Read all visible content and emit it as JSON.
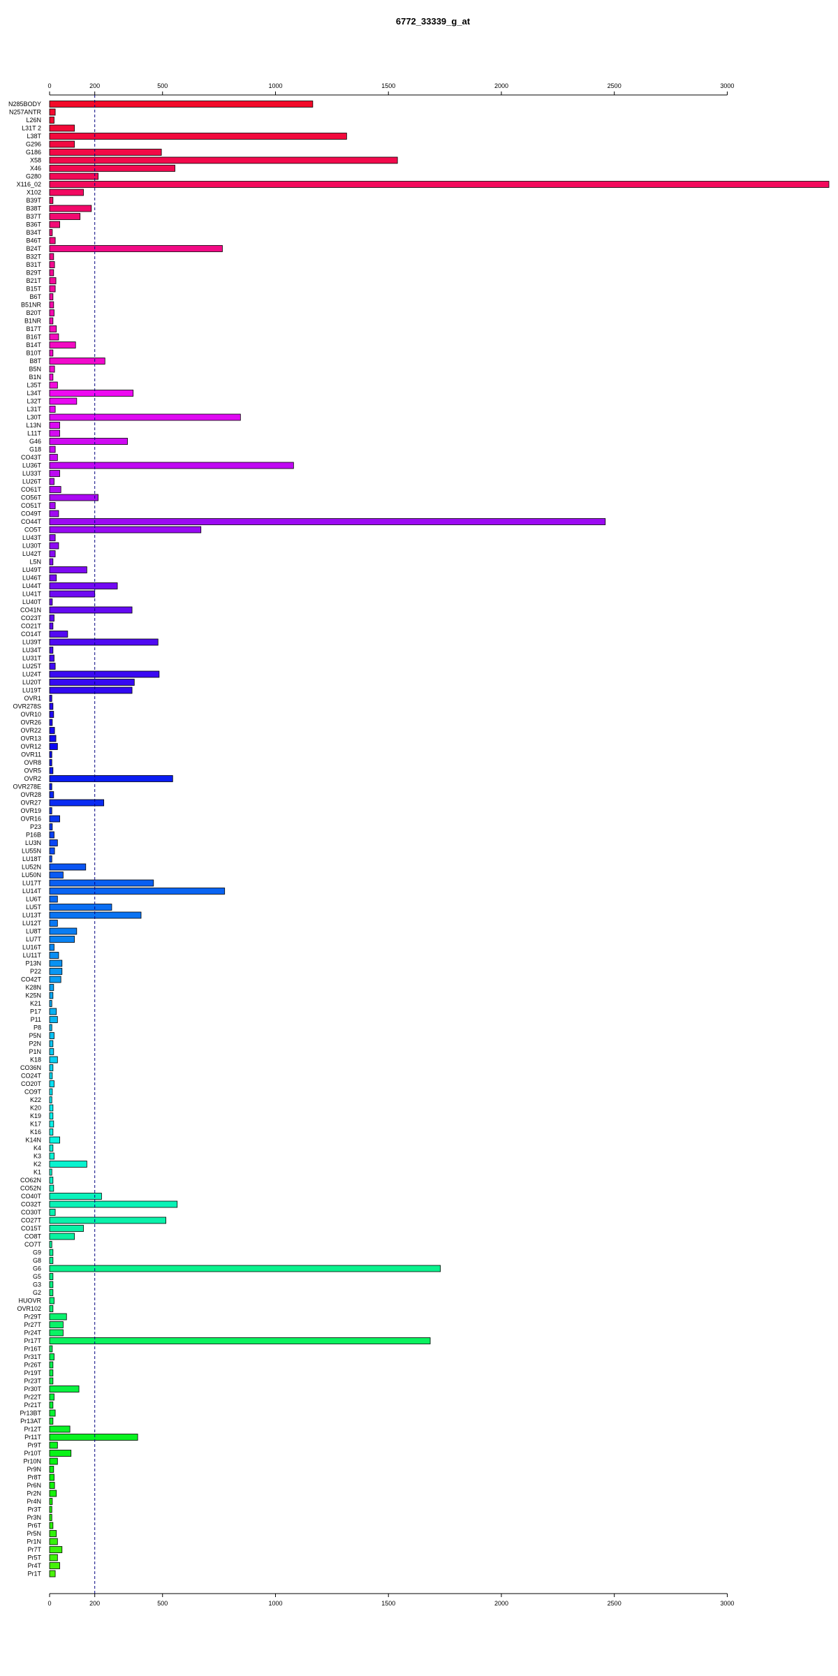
{
  "chart_data": {
    "type": "bar",
    "orientation": "horizontal",
    "title": "6772_33339_g_at",
    "xlabel": "",
    "ylabel": "",
    "xlim": [
      0,
      3450
    ],
    "xticks": [
      0,
      200,
      500,
      1000,
      1500,
      2000,
      2500,
      3000
    ],
    "reference_line": 200,
    "grid": false,
    "categories": [
      "N285BODY",
      "N257ANTR",
      "L26N",
      "L31T 2",
      "L38T",
      "G296",
      "G186",
      "X58",
      "X46",
      "G280",
      "X116_02",
      "X102",
      "B39T",
      "B38T",
      "B37T",
      "B36T",
      "B34T",
      "B46T",
      "B24T",
      "B32T",
      "B31T",
      "B29T",
      "B21T",
      "B15T",
      "B6T",
      "B51NR",
      "B20T",
      "B1NR",
      "B17T",
      "B16T",
      "B14T",
      "B10T",
      "B8T",
      "B5N",
      "B1N",
      "L35T",
      "L34T",
      "L32T",
      "L31T",
      "L30T",
      "L13N",
      "L11T",
      "G46",
      "G18",
      "CO43T",
      "LU36T",
      "LU33T",
      "LU26T",
      "CO61T",
      "CO56T",
      "CO51T",
      "CO49T",
      "CO44T",
      "CO5T",
      "LU43T",
      "LU30T",
      "LU42T",
      "L5N",
      "LU49T",
      "LU46T",
      "LU44T",
      "LU41T",
      "LU40T",
      "CO41N",
      "CO23T",
      "CO21T",
      "CO14T",
      "LU39T",
      "LU34T",
      "LU31T",
      "LU25T",
      "LU24T",
      "LU20T",
      "LU19T",
      "OVR1",
      "OVR278S",
      "OVR10",
      "OVR26",
      "OVR22",
      "OVR13",
      "OVR12",
      "OVR11",
      "OVR8",
      "OVR5",
      "OVR2",
      "OVR278E",
      "OVR28",
      "OVR27",
      "OVR19",
      "OVR16",
      "P23",
      "P16B",
      "LU3N",
      "LU55N",
      "LU18T",
      "LU52N",
      "LU50N",
      "LU17T",
      "LU14T",
      "LU6T",
      "LU5T",
      "LU13T",
      "LU12T",
      "LU8T",
      "LU7T",
      "LU16T",
      "LU11T",
      "P13N",
      "P22",
      "CO42T",
      "K28N",
      "K25N",
      "K21",
      "P17",
      "P11",
      "P8",
      "P5N",
      "P2N",
      "P1N",
      "K18",
      "CO36N",
      "CO24T",
      "CO20T",
      "CO9T",
      "K22",
      "K20",
      "K19",
      "K17",
      "K16",
      "K14N",
      "K4",
      "K3",
      "K2",
      "K1",
      "CO62N",
      "CO52N",
      "CO40T",
      "CO32T",
      "CO30T",
      "CO27T",
      "CO15T",
      "CO8T",
      "CO7T",
      "G9",
      "G8",
      "G6",
      "G5",
      "G3",
      "G2",
      "HUOVR",
      "OVR102",
      "Pr29T",
      "Pr27T",
      "Pr24T",
      "Pr17T",
      "Pr16T",
      "Pr31T",
      "Pr26T",
      "Pr19T",
      "Pr23T",
      "Pr30T",
      "Pr22T",
      "Pr21T",
      "Pr13BT",
      "Pr13AT",
      "Pr12T",
      "Pr11T",
      "Pr9T",
      "Pr10T",
      "Pr10N",
      "Pr9N",
      "Pr8T",
      "Pr6N",
      "Pr2N",
      "Pr4N",
      "Pr3T",
      "Pr3N",
      "Pr6T",
      "Pr5N",
      "Pr1N",
      "Pr7T",
      "Pr5T",
      "Pr4T",
      "Pr1T"
    ],
    "values": [
      1165,
      25,
      20,
      110,
      1315,
      110,
      495,
      1540,
      555,
      215,
      3450,
      150,
      15,
      185,
      135,
      45,
      12,
      25,
      765,
      18,
      22,
      18,
      28,
      25,
      15,
      18,
      20,
      15,
      30,
      40,
      115,
      15,
      245,
      22,
      15,
      35,
      370,
      120,
      25,
      845,
      45,
      45,
      345,
      25,
      35,
      1080,
      45,
      20,
      50,
      215,
      25,
      40,
      2460,
      670,
      25,
      40,
      25,
      15,
      165,
      30,
      300,
      200,
      12,
      365,
      20,
      15,
      80,
      480,
      15,
      20,
      25,
      485,
      375,
      365,
      10,
      15,
      18,
      12,
      22,
      28,
      35,
      10,
      10,
      15,
      545,
      10,
      18,
      240,
      10,
      45,
      12,
      20,
      35,
      22,
      10,
      160,
      60,
      460,
      775,
      35,
      275,
      405,
      35,
      120,
      110,
      20,
      40,
      55,
      55,
      50,
      18,
      15,
      10,
      30,
      35,
      10,
      20,
      15,
      18,
      35,
      15,
      12,
      20,
      12,
      10,
      15,
      15,
      18,
      15,
      45,
      15,
      20,
      165,
      10,
      15,
      18,
      230,
      565,
      25,
      515,
      150,
      110,
      10,
      15,
      15,
      1730,
      15,
      15,
      15,
      20,
      15,
      75,
      60,
      60,
      1685,
      12,
      20,
      15,
      15,
      15,
      130,
      20,
      15,
      25,
      15,
      90,
      390,
      35,
      95,
      35,
      18,
      20,
      22,
      30,
      12,
      10,
      10,
      15,
      30,
      35,
      55,
      35,
      45,
      25
    ],
    "colors": [
      "#f20a29",
      "#f20a2e",
      "#f20a33",
      "#f20a38",
      "#f20a3d",
      "#f20a42",
      "#f20a47",
      "#f20a4c",
      "#f20a51",
      "#f20a57",
      "#f20a5c",
      "#f20a61",
      "#f20a66",
      "#f20a6b",
      "#f20a70",
      "#f20a75",
      "#f20a7a",
      "#f20a80",
      "#f20a85",
      "#f20a8a",
      "#f20a8f",
      "#f20a94",
      "#f20a99",
      "#f20a9e",
      "#f20aa3",
      "#f20aa8",
      "#f20aae",
      "#f20ab3",
      "#f20ab8",
      "#f20abd",
      "#f20ac2",
      "#f20ac7",
      "#f20acc",
      "#f20ad1",
      "#f20ad7",
      "#f20adc",
      "#ee0af2",
      "#e90af2",
      "#e40af2",
      "#df0af2",
      "#da0af2",
      "#d40af2",
      "#cf0af2",
      "#ca0af2",
      "#c50af2",
      "#c00af2",
      "#bb0af2",
      "#b60af2",
      "#b10af2",
      "#ab0af2",
      "#a60af2",
      "#a10af2",
      "#9c0af2",
      "#970af2",
      "#920af2",
      "#8d0af2",
      "#880af2",
      "#830af2",
      "#7d0af2",
      "#780af2",
      "#730af2",
      "#6e0af2",
      "#690af2",
      "#640af2",
      "#5f0af2",
      "#5a0af2",
      "#540af2",
      "#4f0af2",
      "#4a0af2",
      "#450af2",
      "#400af2",
      "#3b0af2",
      "#360af2",
      "#310af2",
      "#2b0af2",
      "#260af2",
      "#210af2",
      "#1c0af2",
      "#170af2",
      "#120af2",
      "#0d0af2",
      "#0a0df2",
      "#0a12f2",
      "#0a17f2",
      "#0a1cf2",
      "#0a21f2",
      "#0a26f2",
      "#0a2bf2",
      "#0a31f2",
      "#0a36f2",
      "#0a3bf2",
      "#0a40f2",
      "#0a45f2",
      "#0a4af2",
      "#0a4ff2",
      "#0a54f2",
      "#0a5af2",
      "#0a5ff2",
      "#0a64f2",
      "#0a69f2",
      "#0a6ef2",
      "#0a73f2",
      "#0a78f2",
      "#0a7df2",
      "#0a83f2",
      "#0a88f2",
      "#0a8df2",
      "#0a92f2",
      "#0a97f2",
      "#0a9cf2",
      "#0aa1f2",
      "#0aa6f2",
      "#0aabf2",
      "#0ab1f2",
      "#0ab6f2",
      "#0abbf2",
      "#0ac0f2",
      "#0ac5f2",
      "#0acaf2",
      "#0acff2",
      "#0ad4f2",
      "#0adaf2",
      "#0adff2",
      "#0ae4f2",
      "#0ae9f2",
      "#0aeef2",
      "#0af2ee",
      "#0af2e9",
      "#0af2e4",
      "#0af2df",
      "#0af2da",
      "#0af2d4",
      "#0af2cf",
      "#0af2ca",
      "#0af2c5",
      "#0af2c0",
      "#0af2bb",
      "#0af2b6",
      "#0af2b1",
      "#0af2ab",
      "#0af2a6",
      "#0af2a1",
      "#0af29c",
      "#0af297",
      "#0af292",
      "#0af28d",
      "#0af288",
      "#0af283",
      "#0af27d",
      "#0af278",
      "#0af273",
      "#0af26e",
      "#0af269",
      "#0af264",
      "#0af25f",
      "#0af25a",
      "#0af254",
      "#0af24f",
      "#0af24a",
      "#0af245",
      "#0af240",
      "#0af23b",
      "#0af236",
      "#0af231",
      "#0af22b",
      "#0af226",
      "#0af221",
      "#0af21c",
      "#0af217",
      "#0af212",
      "#0af20d",
      "#0df20a",
      "#12f20a",
      "#17f20a",
      "#1cf20a",
      "#21f20a",
      "#26f20a",
      "#2bf20a",
      "#31f20a",
      "#36f20a",
      "#3bf20a",
      "#40f20a",
      "#45f20a",
      "#4af20a",
      "#4ff20a"
    ]
  }
}
